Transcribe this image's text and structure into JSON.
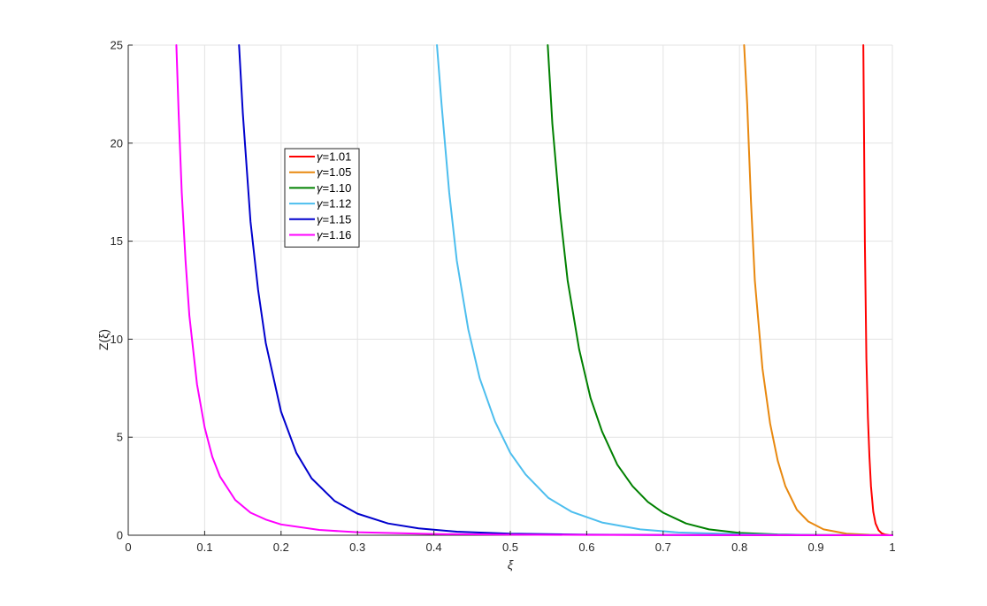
{
  "chart_data": {
    "type": "line",
    "title": "",
    "xlabel": "ξ",
    "ylabel": "Z(ξ)",
    "xlim": [
      0,
      1
    ],
    "ylim": [
      0,
      25
    ],
    "xticks": [
      0,
      0.1,
      0.2,
      0.3,
      0.4,
      0.5,
      0.6,
      0.7,
      0.8,
      0.9,
      1
    ],
    "xtick_labels": [
      "0",
      "0.1",
      "0.2",
      "0.3",
      "0.4",
      "0.5",
      "0.6",
      "0.7",
      "0.8",
      "0.9",
      "1"
    ],
    "yticks": [
      0,
      5,
      10,
      15,
      20,
      25
    ],
    "ytick_labels": [
      "0",
      "5",
      "10",
      "15",
      "20",
      "25"
    ],
    "grid": true,
    "legend_position": "upper-left-inside",
    "series": [
      {
        "name": "γ=1.01",
        "greek": "γ",
        "value_text": "=1.01",
        "color": "#ff0000",
        "x": [
          0.962,
          0.964,
          0.966,
          0.968,
          0.97,
          0.972,
          0.975,
          0.978,
          0.982,
          0.986,
          0.99,
          0.995,
          1.0
        ],
        "y": [
          25,
          15,
          9,
          6,
          4,
          2.5,
          1.2,
          0.6,
          0.25,
          0.1,
          0.04,
          0.01,
          0
        ]
      },
      {
        "name": "γ=1.05",
        "greek": "γ",
        "value_text": "=1.05",
        "color": "#e8880f",
        "x": [
          0.806,
          0.81,
          0.815,
          0.82,
          0.83,
          0.84,
          0.85,
          0.86,
          0.875,
          0.89,
          0.91,
          0.94,
          0.97,
          1.0
        ],
        "y": [
          25,
          22,
          17,
          13,
          8.5,
          5.7,
          3.8,
          2.5,
          1.3,
          0.7,
          0.3,
          0.08,
          0.02,
          0
        ]
      },
      {
        "name": "γ=1.10",
        "greek": "γ",
        "value_text": "=1.10",
        "color": "#008000",
        "x": [
          0.549,
          0.555,
          0.565,
          0.575,
          0.59,
          0.605,
          0.62,
          0.64,
          0.66,
          0.68,
          0.7,
          0.73,
          0.76,
          0.8,
          0.85,
          0.9,
          1.0
        ],
        "y": [
          25,
          21,
          16.5,
          13,
          9.5,
          7,
          5.3,
          3.6,
          2.5,
          1.7,
          1.15,
          0.6,
          0.3,
          0.12,
          0.04,
          0.01,
          0
        ]
      },
      {
        "name": "γ=1.12",
        "greek": "γ",
        "value_text": "=1.12",
        "color": "#4dbeee",
        "x": [
          0.404,
          0.41,
          0.42,
          0.43,
          0.445,
          0.46,
          0.48,
          0.5,
          0.52,
          0.55,
          0.58,
          0.62,
          0.67,
          0.72,
          0.8,
          0.9,
          1.0
        ],
        "y": [
          25,
          22,
          17.5,
          14,
          10.5,
          8,
          5.8,
          4.2,
          3.1,
          1.9,
          1.2,
          0.65,
          0.3,
          0.14,
          0.05,
          0.01,
          0
        ]
      },
      {
        "name": "γ=1.15",
        "greek": "γ",
        "value_text": "=1.15",
        "color": "#0000cd",
        "x": [
          0.145,
          0.15,
          0.16,
          0.17,
          0.18,
          0.2,
          0.22,
          0.24,
          0.27,
          0.3,
          0.34,
          0.38,
          0.43,
          0.5,
          0.6,
          0.7,
          0.8,
          0.9,
          1.0
        ],
        "y": [
          25,
          21.5,
          16,
          12.5,
          9.8,
          6.3,
          4.2,
          2.9,
          1.75,
          1.1,
          0.6,
          0.35,
          0.18,
          0.08,
          0.03,
          0.01,
          0.005,
          0.002,
          0
        ]
      },
      {
        "name": "γ=1.16",
        "greek": "γ",
        "value_text": "=1.16",
        "color": "#ff00ff",
        "x": [
          0.063,
          0.066,
          0.07,
          0.075,
          0.08,
          0.09,
          0.1,
          0.11,
          0.12,
          0.14,
          0.16,
          0.18,
          0.2,
          0.25,
          0.3,
          0.4,
          0.5,
          0.6,
          0.8,
          1.0
        ],
        "y": [
          25,
          21.5,
          17.5,
          14,
          11.2,
          7.7,
          5.5,
          4.0,
          3.0,
          1.8,
          1.15,
          0.8,
          0.55,
          0.27,
          0.15,
          0.06,
          0.03,
          0.015,
          0.005,
          0
        ]
      }
    ]
  }
}
